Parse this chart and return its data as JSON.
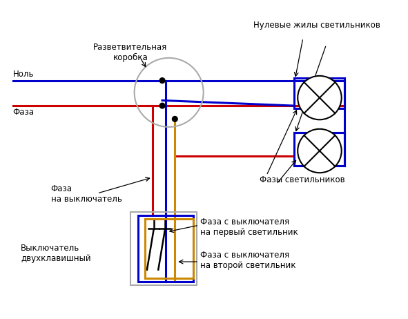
{
  "bg_color": "#ffffff",
  "blue": "#0000cc",
  "red": "#cc0000",
  "orange": "#cc8800",
  "gray": "#aaaaaa",
  "black": "#000000",
  "labels": {
    "nol": "Ноль",
    "faza": "Фаза",
    "junction_box": "Разветвительная\nкоробка",
    "neutral_wires": "Нулевые жилы светильников",
    "phase_wires": "Фазы светильников",
    "phase_to_switch": "Фаза\nна выключатель",
    "switch_name": "Выключатель\nдвухклавишный",
    "phase_from_sw1": "Фаза с выключателя\nна первый светильник",
    "phase_from_sw2": "Фаза с выключателя\nна второй светильник"
  }
}
